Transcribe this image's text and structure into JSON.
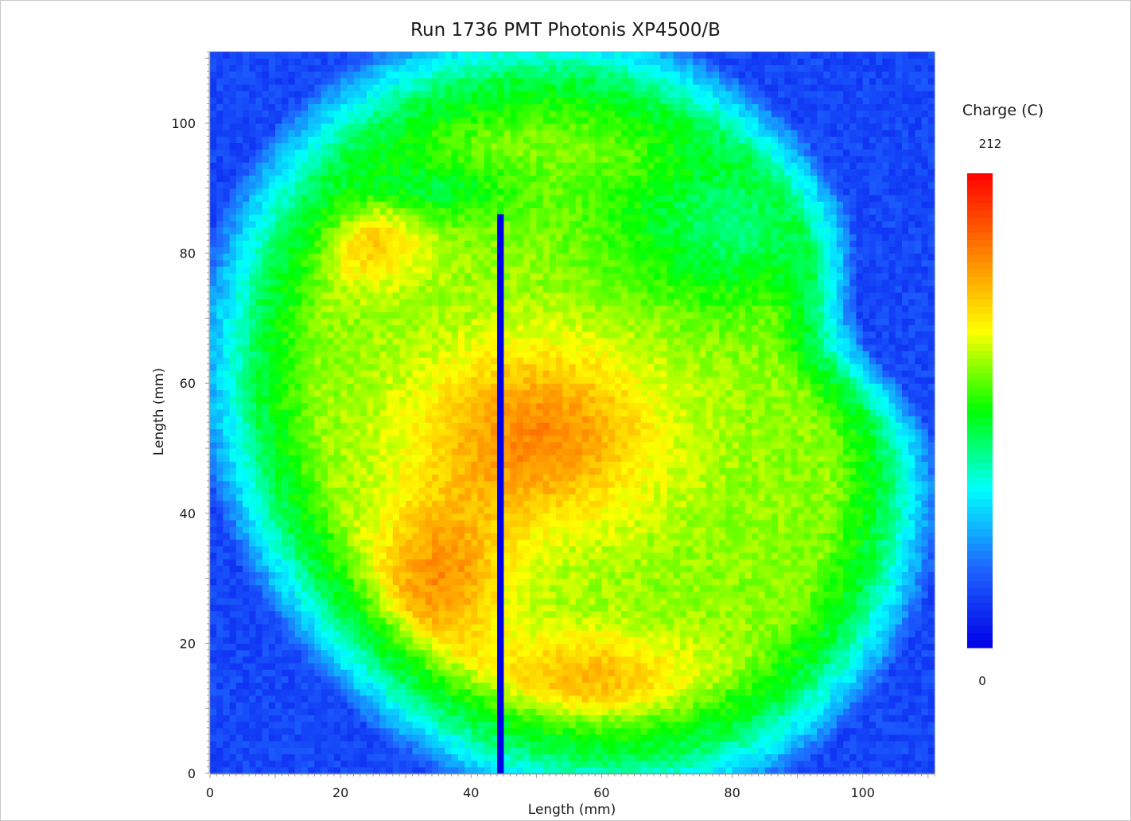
{
  "chart_data": {
    "type": "heatmap",
    "title": "Run 1736 PMT Photonis XP4500/B",
    "xlabel": "Length (mm)",
    "ylabel": "Length (mm)",
    "xlim": [
      0,
      111
    ],
    "ylim": [
      0,
      111
    ],
    "x_ticks": [
      0,
      20,
      40,
      60,
      80,
      100
    ],
    "y_ticks": [
      0,
      20,
      40,
      60,
      80,
      100
    ],
    "colorbar": {
      "title": "Charge (C)",
      "min": 0,
      "max": 212,
      "min_label": "0",
      "max_label": "212",
      "colormap": [
        "#0000e6",
        "#1e64ff",
        "#00ffff",
        "#00ff00",
        "#ffff00",
        "#ff7f00",
        "#ff0000"
      ]
    },
    "grid": false,
    "legend": "colorbar-right",
    "features": {
      "background_level": 25,
      "sensitive_region": "irregular ellipse, center about (58, 53) mm",
      "peak_level": 180,
      "dead_strip": {
        "x": 44.5,
        "y_from": 0,
        "y_to": 86,
        "value": 0
      }
    }
  }
}
